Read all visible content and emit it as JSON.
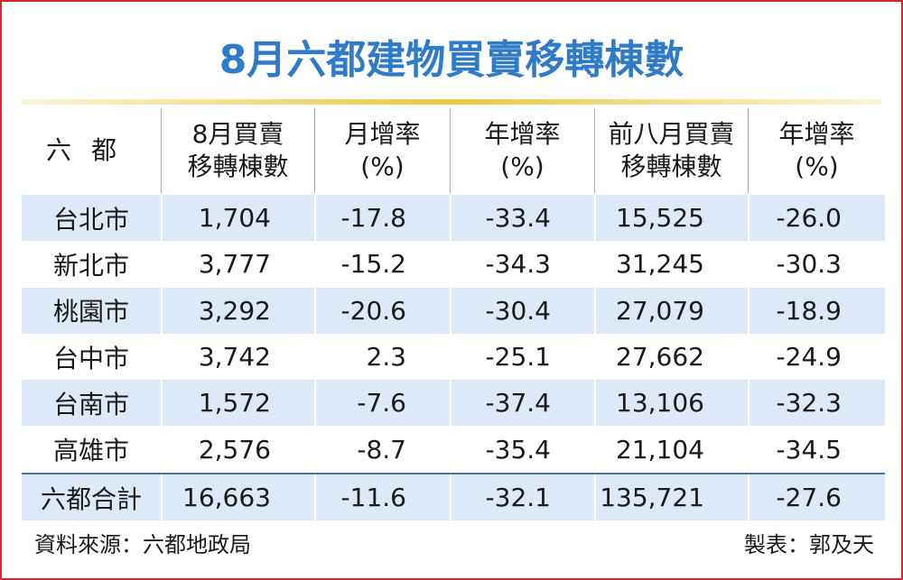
{
  "title": "8月六都建物買賣移轉棟數",
  "table": {
    "header": [
      [
        "六都"
      ],
      [
        "8月買賣",
        "移轉棟數"
      ],
      [
        "月增率",
        "(%)"
      ],
      [
        "年增率",
        "(%)"
      ],
      [
        "前八月買賣",
        "移轉棟數"
      ],
      [
        "年增率",
        "(%)"
      ]
    ],
    "rows": [
      [
        "台北市",
        "1,704",
        "-17.8",
        "-33.4",
        "15,525",
        "-26.0"
      ],
      [
        "新北市",
        "3,777",
        "-15.2",
        "-34.3",
        "31,245",
        "-30.3"
      ],
      [
        "桃園市",
        "3,292",
        "-20.6",
        "-30.4",
        "27,079",
        "-18.9"
      ],
      [
        "台中市",
        "3,742",
        "2.3",
        "-25.1",
        "27,662",
        "-24.9"
      ],
      [
        "台南市",
        "1,572",
        "-7.6",
        "-37.4",
        "13,106",
        "-32.3"
      ],
      [
        "高雄市",
        "2,576",
        "-8.7",
        "-35.4",
        "21,104",
        "-34.5"
      ]
    ],
    "total": [
      "六都合計",
      "16,663",
      "-11.6",
      "-32.1",
      "135,721",
      "-27.6"
    ]
  },
  "footer": {
    "source": "資料來源：六都地政局",
    "author": "製表：郭及天"
  }
}
